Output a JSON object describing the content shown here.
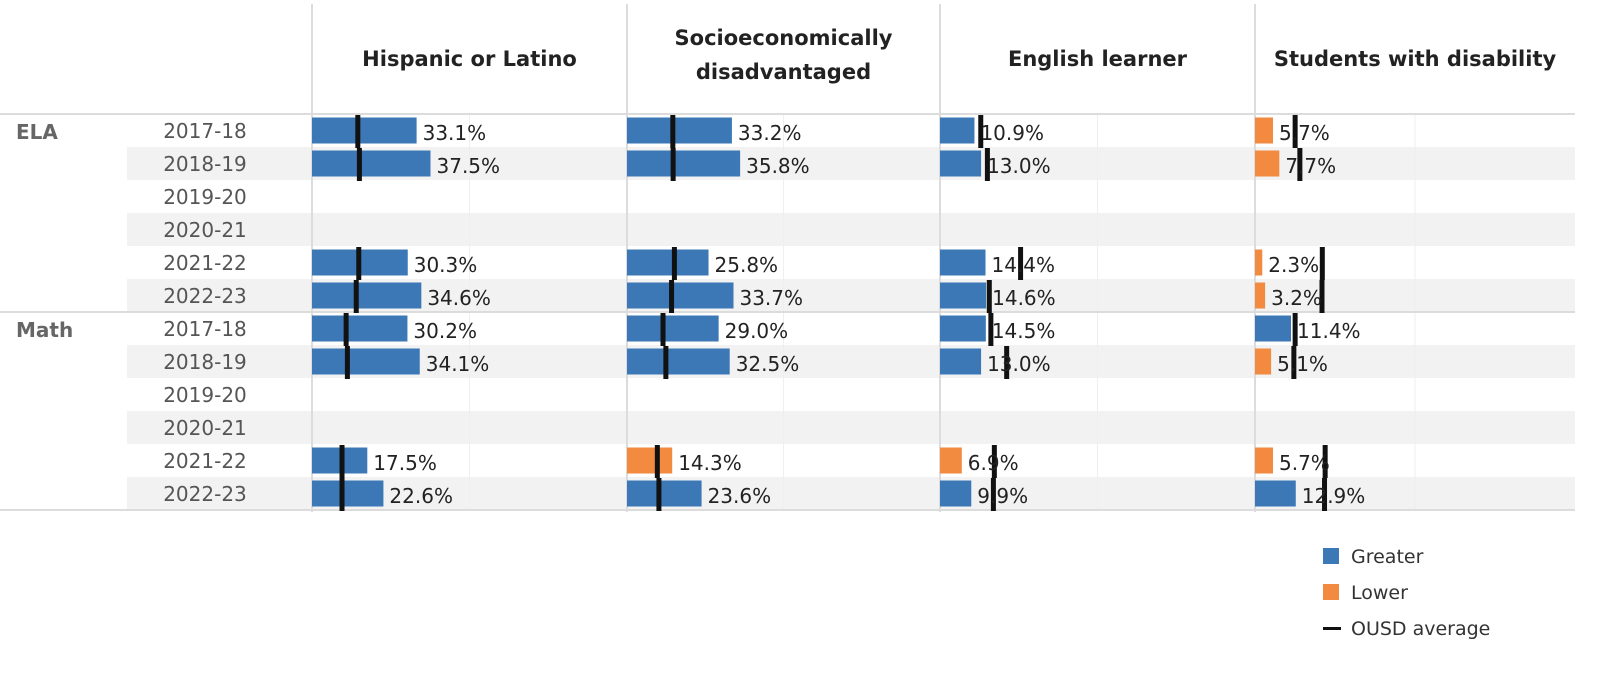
{
  "chart_data": {
    "type": "bar",
    "groups": [
      "Hispanic or Latino",
      "Socioeconomically disadvantaged",
      "English learner",
      "Students with disability"
    ],
    "group_header_lines": [
      [
        "Hispanic or Latino"
      ],
      [
        "Socioeconomically",
        "disadvantaged"
      ],
      [
        "English learner"
      ],
      [
        "Students with disability"
      ]
    ],
    "sections": [
      {
        "name": "ELA",
        "years": [
          "2017-18",
          "2018-19",
          "2019-20",
          "2020-21",
          "2021-22",
          "2022-23"
        ]
      },
      {
        "name": "Math",
        "years": [
          "2017-18",
          "2018-19",
          "2019-20",
          "2020-21",
          "2021-22",
          "2022-23"
        ]
      }
    ],
    "values": [
      [
        [
          33.1,
          37.5,
          null,
          null,
          30.3,
          34.6
        ],
        [
          30.2,
          34.1,
          null,
          null,
          17.5,
          22.6
        ]
      ],
      [
        [
          33.2,
          35.8,
          null,
          null,
          25.8,
          33.7
        ],
        [
          29.0,
          32.5,
          null,
          null,
          14.3,
          23.6
        ]
      ],
      [
        [
          10.9,
          13.0,
          null,
          null,
          14.4,
          14.6
        ],
        [
          14.5,
          13.0,
          null,
          null,
          6.9,
          9.9
        ]
      ],
      [
        [
          5.7,
          7.7,
          null,
          null,
          2.3,
          3.2
        ],
        [
          11.4,
          5.1,
          null,
          null,
          5.7,
          12.9
        ]
      ]
    ],
    "labels": [
      [
        [
          "33.1%",
          "37.5%",
          "",
          "",
          "30.3%",
          "34.6%"
        ],
        [
          "30.2%",
          "34.1%",
          "",
          "",
          "17.5%",
          "22.6%"
        ]
      ],
      [
        [
          "33.2%",
          "35.8%",
          "",
          "",
          "25.8%",
          "33.7%"
        ],
        [
          "29.0%",
          "32.5%",
          "",
          "",
          "14.3%",
          "23.6%"
        ]
      ],
      [
        [
          "10.9%",
          "13.0%",
          "",
          "",
          "14.4%",
          "14.6%"
        ],
        [
          "14.5%",
          "13.0%",
          "",
          "",
          "6.9%",
          "9.9%"
        ]
      ],
      [
        [
          "5.7%",
          "7.7%",
          "",
          "",
          "2.3%",
          "3.2%"
        ],
        [
          "11.4%",
          "5.1%",
          "",
          "",
          "5.7%",
          "12.9%"
        ]
      ]
    ],
    "status": [
      [
        [
          "greater",
          "greater",
          null,
          null,
          "greater",
          "greater"
        ],
        [
          "greater",
          "greater",
          null,
          null,
          "greater",
          "greater"
        ]
      ],
      [
        [
          "greater",
          "greater",
          null,
          null,
          "greater",
          "greater"
        ],
        [
          "greater",
          "greater",
          null,
          null,
          "lower",
          "greater"
        ]
      ],
      [
        [
          "greater",
          "greater",
          null,
          null,
          "greater",
          "greater"
        ],
        [
          "greater",
          "greater",
          null,
          null,
          "lower",
          "greater"
        ]
      ],
      [
        [
          "lower",
          "lower",
          null,
          null,
          "lower",
          "lower"
        ],
        [
          "greater",
          "lower",
          null,
          null,
          "lower",
          "greater"
        ]
      ]
    ],
    "ousd_average": [
      [
        [
          14.5,
          15.0,
          null,
          null,
          14.8,
          14.0
        ],
        [
          10.8,
          11.2,
          null,
          null,
          9.5,
          9.5
        ]
      ],
      [
        [
          14.5,
          14.6,
          null,
          null,
          15.0,
          14.1
        ],
        [
          11.4,
          12.3,
          null,
          null,
          9.6,
          10.1
        ]
      ],
      [
        [
          12.9,
          15.0,
          null,
          null,
          25.5,
          15.6
        ],
        [
          16.1,
          21.1,
          null,
          null,
          17.2,
          16.9
        ]
      ],
      [
        [
          12.7,
          14.2,
          null,
          null,
          21.3,
          21.2
        ],
        [
          12.7,
          12.3,
          null,
          null,
          22.2,
          22.0
        ]
      ]
    ],
    "x_max": 100,
    "legend": {
      "position": "bottom-right",
      "items": [
        {
          "label": "Greater",
          "color": "#3b78b5",
          "kind": "swatch"
        },
        {
          "label": "Lower",
          "color": "#f28a3f",
          "kind": "swatch"
        },
        {
          "label": "OUSD average",
          "color": "#111111",
          "kind": "line"
        }
      ]
    },
    "colors": {
      "greater": "#3b78b5",
      "lower": "#f28a3f",
      "average": "#111111",
      "band": "#f2f2f2",
      "rule": "#dcdcdc"
    }
  }
}
